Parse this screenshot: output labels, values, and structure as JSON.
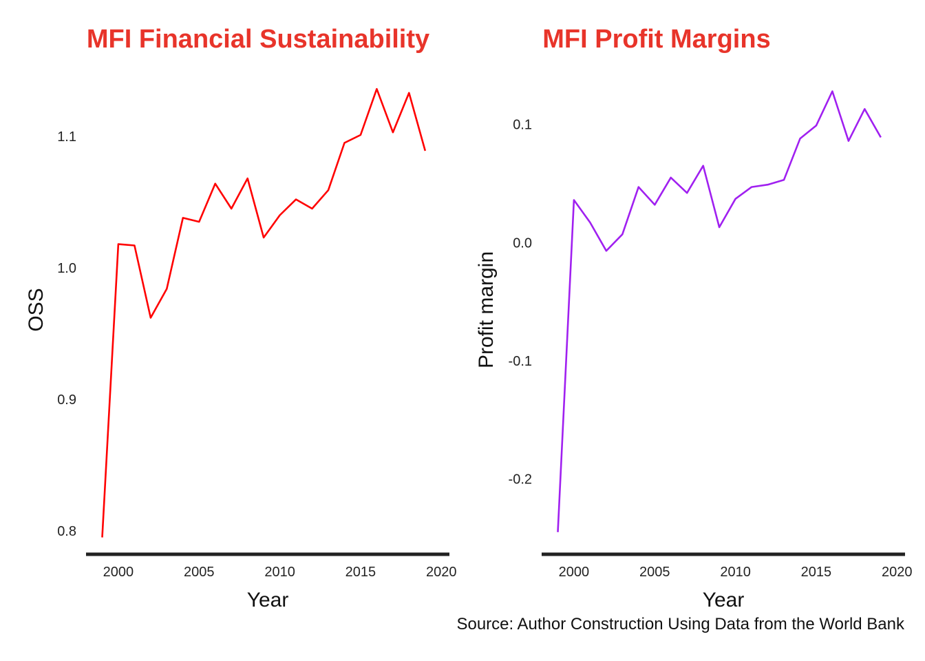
{
  "chart_data": [
    {
      "type": "line",
      "title": "MFI Financial Sustainability",
      "xlabel": "Year",
      "ylabel": "OSS",
      "xlim": [
        1998,
        2020.5
      ],
      "ylim": [
        0.79,
        1.145
      ],
      "xticks": [
        2000,
        2005,
        2010,
        2015,
        2020
      ],
      "xtick_labels": [
        "2000",
        "2005",
        "2010",
        "2015",
        "2020"
      ],
      "yticks": [
        0.8,
        0.9,
        1.0,
        1.1
      ],
      "ytick_labels": [
        "0.8",
        "0.9",
        "1.0",
        "1.1"
      ],
      "grid": false,
      "color": "#ff0000",
      "x": [
        1999,
        2000,
        2001,
        2002,
        2003,
        2004,
        2005,
        2006,
        2007,
        2008,
        2009,
        2010,
        2011,
        2012,
        2013,
        2014,
        2015,
        2016,
        2017,
        2018,
        2019
      ],
      "y": [
        0.795,
        1.018,
        1.017,
        0.962,
        0.984,
        1.038,
        1.035,
        1.064,
        1.045,
        1.068,
        1.023,
        1.04,
        1.052,
        1.045,
        1.059,
        1.095,
        1.101,
        1.136,
        1.103,
        1.133,
        1.089
      ]
    },
    {
      "type": "line",
      "title": "MFI Profit Margins",
      "xlabel": "Year",
      "ylabel": "Profit margin",
      "xlim": [
        1998,
        2020.5
      ],
      "ylim": [
        -0.255,
        0.14
      ],
      "xticks": [
        2000,
        2005,
        2010,
        2015,
        2020
      ],
      "xtick_labels": [
        "2000",
        "2005",
        "2010",
        "2015",
        "2020"
      ],
      "yticks": [
        -0.2,
        -0.1,
        0.0,
        0.1
      ],
      "ytick_labels": [
        "-0.2",
        "-0.1",
        "0.0",
        "0.1"
      ],
      "grid": false,
      "color": "#a020f0",
      "x": [
        1999,
        2000,
        2001,
        2002,
        2003,
        2004,
        2005,
        2006,
        2007,
        2008,
        2009,
        2010,
        2011,
        2012,
        2013,
        2014,
        2015,
        2016,
        2017,
        2018,
        2019
      ],
      "y": [
        -0.245,
        0.036,
        0.017,
        -0.007,
        0.007,
        0.047,
        0.032,
        0.055,
        0.042,
        0.065,
        0.013,
        0.037,
        0.047,
        0.049,
        0.053,
        0.088,
        0.099,
        0.128,
        0.086,
        0.113,
        0.089
      ]
    }
  ],
  "caption": "Source: Author Construction Using Data from the World Bank"
}
